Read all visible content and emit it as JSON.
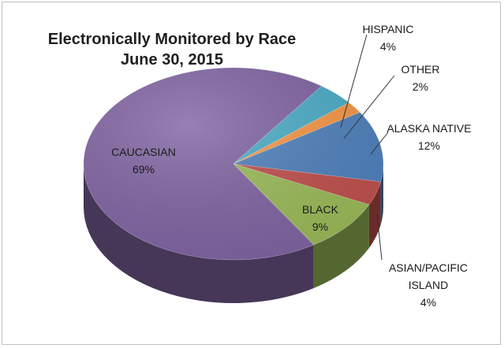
{
  "chart_data": {
    "type": "pie",
    "style": "3d",
    "title_lines": [
      "Electronically Monitored by Race",
      "June 30, 2015"
    ],
    "slices": [
      {
        "category": "HISPANIC",
        "value": 4,
        "label_lines": [
          "HISPANIC",
          "4%"
        ],
        "color": "#4bacc6"
      },
      {
        "category": "OTHER",
        "value": 2,
        "label_lines": [
          "OTHER",
          "2%"
        ],
        "color": "#f79646"
      },
      {
        "category": "ALASKA NATIVE",
        "value": 12,
        "label_lines": [
          "ALASKA NATIVE",
          "12%"
        ],
        "color": "#4f81bd"
      },
      {
        "category": "ASIAN/PACIFIC ISLAND",
        "value": 4,
        "label_lines": [
          "ASIAN/PACIFIC",
          "ISLAND",
          "4%"
        ],
        "color": "#c0504d"
      },
      {
        "category": "BLACK",
        "value": 9,
        "label_lines": [
          "BLACK",
          "9%"
        ],
        "color": "#9bbb59"
      },
      {
        "category": "CAUCASIAN",
        "value": 69,
        "label_lines": [
          "CAUCASIAN",
          "69%"
        ],
        "color": "#8064a2"
      }
    ],
    "legend": "none",
    "data_labels": "category and percent"
  }
}
